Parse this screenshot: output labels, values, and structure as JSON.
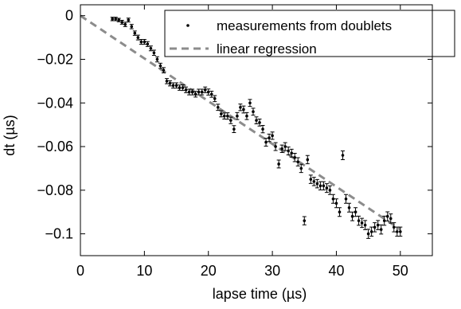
{
  "chart_data": {
    "type": "scatter",
    "xlabel": "lapse time (µs)",
    "ylabel": "dt (µs)",
    "xlim": [
      0,
      55
    ],
    "ylim": [
      -0.11,
      0.005
    ],
    "x_ticks": [
      0,
      10,
      20,
      30,
      40,
      50
    ],
    "y_ticks": [
      0,
      -0.02,
      -0.04,
      -0.06,
      -0.08,
      -0.1
    ],
    "x_tick_labels": [
      "0",
      "10",
      "20",
      "30",
      "40",
      "50"
    ],
    "y_tick_labels": [
      "0",
      "−0.02",
      "−0.04",
      "−0.06",
      "−0.08",
      "−0.1"
    ],
    "grid": false,
    "legend_position": "top-right",
    "series": [
      {
        "name": "measurements from doublets",
        "style": "black-dots-with-error-bars",
        "color": "#000000",
        "x": [
          5.0,
          5.5,
          6.0,
          6.5,
          7.0,
          7.5,
          8.0,
          8.5,
          9.0,
          9.5,
          10.0,
          10.5,
          11.0,
          11.5,
          12.0,
          12.5,
          13.0,
          13.5,
          14.0,
          14.5,
          15.0,
          15.5,
          16.0,
          16.5,
          17.0,
          17.5,
          18.0,
          18.5,
          19.0,
          19.5,
          20.0,
          20.5,
          21.0,
          21.5,
          22.0,
          22.5,
          23.0,
          23.5,
          24.0,
          24.5,
          25.0,
          25.5,
          26.0,
          26.5,
          27.0,
          27.5,
          28.0,
          28.5,
          29.0,
          29.5,
          30.0,
          30.5,
          31.0,
          31.5,
          32.0,
          32.5,
          33.0,
          33.5,
          34.0,
          34.5,
          35.0,
          35.5,
          36.0,
          36.5,
          37.0,
          37.5,
          38.0,
          38.5,
          39.0,
          39.5,
          40.0,
          40.5,
          41.0,
          41.5,
          42.0,
          42.5,
          43.0,
          43.5,
          44.0,
          44.5,
          45.0,
          45.5,
          46.0,
          46.5,
          47.0,
          47.5,
          48.0,
          48.5,
          49.0,
          49.5,
          50.0
        ],
        "y": [
          -0.0015,
          -0.0015,
          -0.002,
          -0.003,
          -0.004,
          -0.002,
          -0.005,
          -0.008,
          -0.01,
          -0.012,
          -0.012,
          -0.013,
          -0.015,
          -0.017,
          -0.02,
          -0.023,
          -0.025,
          -0.03,
          -0.031,
          -0.032,
          -0.032,
          -0.033,
          -0.033,
          -0.034,
          -0.035,
          -0.035,
          -0.036,
          -0.035,
          -0.035,
          -0.034,
          -0.035,
          -0.036,
          -0.038,
          -0.042,
          -0.045,
          -0.046,
          -0.046,
          -0.048,
          -0.052,
          -0.046,
          -0.042,
          -0.043,
          -0.046,
          -0.04,
          -0.044,
          -0.048,
          -0.049,
          -0.052,
          -0.058,
          -0.056,
          -0.055,
          -0.06,
          -0.068,
          -0.061,
          -0.06,
          -0.062,
          -0.063,
          -0.065,
          -0.067,
          -0.07,
          -0.094,
          -0.066,
          -0.075,
          -0.076,
          -0.077,
          -0.078,
          -0.078,
          -0.079,
          -0.08,
          -0.084,
          -0.086,
          -0.09,
          -0.064,
          -0.084,
          -0.088,
          -0.092,
          -0.09,
          -0.094,
          -0.095,
          -0.096,
          -0.1,
          -0.099,
          -0.097,
          -0.096,
          -0.098,
          -0.094,
          -0.092,
          -0.093,
          -0.097,
          -0.099,
          -0.099
        ],
        "error": [
          0.0008,
          0.0008,
          0.0008,
          0.0009,
          0.001,
          0.0009,
          0.001,
          0.001,
          0.0011,
          0.0011,
          0.0011,
          0.0011,
          0.0011,
          0.0012,
          0.0012,
          0.0012,
          0.0012,
          0.0012,
          0.0012,
          0.0012,
          0.0012,
          0.0012,
          0.0013,
          0.0013,
          0.0013,
          0.0013,
          0.0013,
          0.0013,
          0.0013,
          0.0013,
          0.0014,
          0.0014,
          0.0014,
          0.0014,
          0.0014,
          0.0014,
          0.0015,
          0.0015,
          0.0016,
          0.0016,
          0.0015,
          0.0016,
          0.0016,
          0.0016,
          0.0016,
          0.0016,
          0.0016,
          0.0017,
          0.0018,
          0.0017,
          0.0017,
          0.0018,
          0.0018,
          0.0017,
          0.0018,
          0.0018,
          0.0018,
          0.0019,
          0.0019,
          0.0019,
          0.0019,
          0.0019,
          0.0019,
          0.0019,
          0.0019,
          0.0019,
          0.0019,
          0.002,
          0.002,
          0.002,
          0.002,
          0.002,
          0.002,
          0.002,
          0.002,
          0.002,
          0.002,
          0.0021,
          0.0021,
          0.0021,
          0.0021,
          0.0021,
          0.0021,
          0.0021,
          0.0021,
          0.0021,
          0.0021,
          0.0021,
          0.0021,
          0.0021,
          0.0021
        ]
      },
      {
        "name": "linear regression",
        "style": "dashed-line",
        "color": "#8c8c8c",
        "x": [
          0,
          50
        ],
        "y": [
          0,
          -0.098
        ]
      }
    ]
  }
}
